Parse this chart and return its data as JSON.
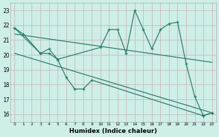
{
  "xlabel": "Humidex (Indice chaleur)",
  "line1_x": [
    0,
    1,
    3,
    4,
    5,
    10,
    11,
    12,
    13,
    14,
    15,
    16,
    17,
    18,
    19,
    20,
    21,
    22,
    23
  ],
  "line1_y": [
    21.8,
    21.4,
    20.1,
    20.4,
    19.7,
    20.5,
    21.7,
    21.7,
    20.1,
    23.0,
    21.7,
    20.4,
    21.7,
    22.1,
    22.2,
    19.4,
    17.2,
    15.9,
    16.1
  ],
  "line2_x": [
    0,
    3,
    4,
    5,
    6,
    7,
    8,
    9,
    22,
    23
  ],
  "line2_y": [
    21.8,
    20.1,
    20.1,
    19.7,
    18.5,
    17.7,
    17.7,
    18.3,
    15.9,
    16.1
  ],
  "trend1_x": [
    0,
    23
  ],
  "trend1_y": [
    21.4,
    19.5
  ],
  "trend2_x": [
    0,
    23
  ],
  "trend2_y": [
    20.1,
    16.1
  ],
  "line_color": "#2a7a6a",
  "bg_color": "#ceeee8",
  "grid_color": "#c8b8b8",
  "xlim": [
    -0.5,
    23.5
  ],
  "ylim": [
    15.5,
    23.5
  ],
  "yticks": [
    16,
    17,
    18,
    19,
    20,
    21,
    22,
    23
  ],
  "xticks": [
    0,
    1,
    2,
    3,
    4,
    5,
    6,
    7,
    8,
    9,
    10,
    11,
    12,
    13,
    14,
    15,
    16,
    17,
    18,
    19,
    20,
    21,
    22,
    23
  ]
}
